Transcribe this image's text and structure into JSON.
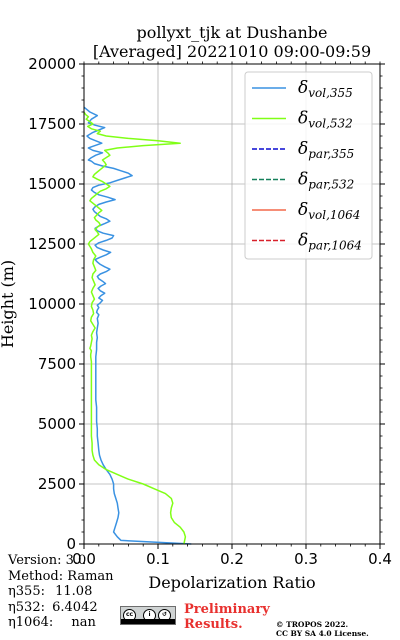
{
  "chart_data": {
    "type": "line",
    "title": "pollyxt_tjk at Dushanbe",
    "subtitle": "[Averaged] 20221010 09:00-09:59",
    "xlabel": "Depolarization Ratio",
    "ylabel": "Height (m)",
    "xlim": [
      0,
      0.4
    ],
    "ylim": [
      0,
      20000
    ],
    "xticks": [
      "0.0",
      "0.1",
      "0.2",
      "0.3",
      "0.4"
    ],
    "yticks": [
      "0",
      "2500",
      "5000",
      "7500",
      "10000",
      "12500",
      "15000",
      "17500",
      "20000"
    ],
    "grid": true,
    "legend_position": "top-right",
    "legend": [
      {
        "label": "δvol,355",
        "base": "δ",
        "sub": "vol,355",
        "color": "#3a92e2",
        "dash": false
      },
      {
        "label": "δvol,532",
        "base": "δ",
        "sub": "vol,532",
        "color": "#80ff16",
        "dash": false
      },
      {
        "label": "δpar,355",
        "base": "δ",
        "sub": "par,355",
        "color": "#0a0ad0",
        "dash": true
      },
      {
        "label": "δpar,532",
        "base": "δ",
        "sub": "par,532",
        "color": "#15805a",
        "dash": true
      },
      {
        "label": "δvol,1064",
        "base": "δ",
        "sub": "vol,1064",
        "color": "#f4684a",
        "dash": false
      },
      {
        "label": "δpar,1064",
        "base": "δ",
        "sub": "par,1064",
        "color": "#d8202a",
        "dash": true
      }
    ],
    "series": [
      {
        "name": "δvol,355",
        "color": "#3a92e2",
        "x": [
          0.145,
          0.05,
          0.045,
          0.04,
          0.042,
          0.044,
          0.046,
          0.047,
          0.046,
          0.045,
          0.043,
          0.041,
          0.04,
          0.04,
          0.038,
          0.035,
          0.03,
          0.026,
          0.023,
          0.021,
          0.02,
          0.019,
          0.018,
          0.018,
          0.017,
          0.017,
          0.017,
          0.016,
          0.016,
          0.016,
          0.016,
          0.016,
          0.016,
          0.016,
          0.017,
          0.017,
          0.018,
          0.017,
          0.018,
          0.019,
          0.018,
          0.02,
          0.017,
          0.018,
          0.02,
          0.018,
          0.022,
          0.025,
          0.02,
          0.023,
          0.028,
          0.022,
          0.019,
          0.023,
          0.029,
          0.025,
          0.02,
          0.018,
          0.022,
          0.03,
          0.035,
          0.028,
          0.022,
          0.018,
          0.015,
          0.022,
          0.03,
          0.036,
          0.026,
          0.018,
          0.015,
          0.02,
          0.03,
          0.038,
          0.04,
          0.026,
          0.018,
          0.015,
          0.02,
          0.028,
          0.035,
          0.03,
          0.022,
          0.018,
          0.014,
          0.012,
          0.015,
          0.02,
          0.03,
          0.042,
          0.032,
          0.02,
          0.014,
          0.01,
          0.012,
          0.02,
          0.035,
          0.045,
          0.055,
          0.065,
          0.06,
          0.05,
          0.04,
          0.025,
          0.014,
          0.01,
          0.006,
          0.01,
          0.016,
          0.025,
          0.012,
          0.006,
          0.01,
          0.024,
          0.016,
          0.008,
          0.004,
          0.012,
          0.02,
          0.028,
          0.015,
          0.006,
          0.01,
          0.018,
          0.008,
          0.0
        ],
        "y": [
          0,
          150,
          300,
          500,
          700,
          900,
          1100,
          1300,
          1500,
          1700,
          1900,
          2100,
          2300,
          2500,
          2700,
          2900,
          3100,
          3300,
          3500,
          3700,
          3900,
          4200,
          4500,
          4800,
          5100,
          5400,
          5700,
          6000,
          6300,
          6600,
          6900,
          7200,
          7500,
          7800,
          8100,
          8400,
          8600,
          8800,
          9000,
          9200,
          9400,
          9550,
          9650,
          9750,
          9850,
          9950,
          10050,
          10150,
          10250,
          10350,
          10450,
          10550,
          10650,
          10750,
          10850,
          10950,
          11050,
          11150,
          11250,
          11350,
          11450,
          11550,
          11650,
          11750,
          11850,
          11950,
          12050,
          12150,
          12250,
          12350,
          12450,
          12550,
          12650,
          12750,
          12850,
          12950,
          13050,
          13150,
          13250,
          13350,
          13450,
          13550,
          13650,
          13750,
          13850,
          13950,
          14050,
          14150,
          14250,
          14350,
          14450,
          14550,
          14650,
          14750,
          14850,
          14950,
          15050,
          15150,
          15250,
          15350,
          15450,
          15550,
          15650,
          15750,
          15850,
          15950,
          16000,
          16100,
          16200,
          16300,
          16400,
          16500,
          16550,
          16700,
          16800,
          16900,
          17000,
          17150,
          17250,
          17350,
          17450,
          17550,
          17700,
          17850,
          18000,
          18200
        ]
      },
      {
        "name": "δvol,532",
        "color": "#80ff16",
        "x": [
          0.135,
          0.137,
          0.135,
          0.13,
          0.122,
          0.118,
          0.117,
          0.118,
          0.12,
          0.118,
          0.11,
          0.095,
          0.08,
          0.06,
          0.045,
          0.03,
          0.02,
          0.014,
          0.012,
          0.011,
          0.011,
          0.01,
          0.01,
          0.01,
          0.01,
          0.01,
          0.01,
          0.01,
          0.01,
          0.01,
          0.01,
          0.01,
          0.01,
          0.009,
          0.009,
          0.01,
          0.008,
          0.009,
          0.01,
          0.011,
          0.01,
          0.012,
          0.015,
          0.012,
          0.009,
          0.01,
          0.013,
          0.012,
          0.01,
          0.011,
          0.014,
          0.012,
          0.01,
          0.012,
          0.015,
          0.013,
          0.011,
          0.012,
          0.016,
          0.014,
          0.012,
          0.013,
          0.016,
          0.012,
          0.01,
          0.008,
          0.006,
          0.008,
          0.012,
          0.016,
          0.02,
          0.018,
          0.015,
          0.018,
          0.022,
          0.02,
          0.016,
          0.014,
          0.017,
          0.02,
          0.024,
          0.02,
          0.016,
          0.012,
          0.008,
          0.01,
          0.014,
          0.018,
          0.022,
          0.03,
          0.035,
          0.03,
          0.025,
          0.018,
          0.012,
          0.014,
          0.018,
          0.022,
          0.026,
          0.03,
          0.028,
          0.025,
          0.03,
          0.035,
          0.032,
          0.028,
          0.045,
          0.08,
          0.13,
          0.1,
          0.06,
          0.03,
          0.018,
          0.022,
          0.01,
          0.005,
          0.012,
          0.008,
          0.003,
          0.006,
          0.002,
          0.0
        ],
        "y": [
          0,
          300,
          500,
          700,
          900,
          1100,
          1300,
          1500,
          1700,
          1900,
          2100,
          2300,
          2500,
          2700,
          2900,
          3100,
          3300,
          3500,
          3700,
          3900,
          4200,
          4500,
          4800,
          5100,
          5400,
          5700,
          6000,
          6300,
          6600,
          6900,
          7200,
          7400,
          7600,
          7800,
          7900,
          8050,
          8150,
          8250,
          8400,
          8550,
          8700,
          8850,
          9000,
          9150,
          9300,
          9450,
          9600,
          9750,
          9900,
          10050,
          10200,
          10350,
          10500,
          10650,
          10800,
          10950,
          11100,
          11250,
          11400,
          11550,
          11700,
          11850,
          12000,
          12150,
          12300,
          12400,
          12500,
          12600,
          12700,
          12800,
          12900,
          13000,
          13100,
          13200,
          13300,
          13400,
          13500,
          13600,
          13700,
          13800,
          13900,
          14000,
          14100,
          14200,
          14300,
          14400,
          14500,
          14600,
          14700,
          14800,
          14900,
          15000,
          15100,
          15200,
          15300,
          15400,
          15500,
          15600,
          15700,
          15800,
          15900,
          16000,
          16100,
          16200,
          16300,
          16400,
          16500,
          16600,
          16700,
          16800,
          16900,
          17000,
          17100,
          17200,
          17300,
          17400,
          17500,
          17600,
          17700,
          17800,
          17900,
          18000
        ]
      }
    ]
  },
  "info": {
    "version": "Version: 3.0",
    "method": "Method: Raman",
    "eta355_label": "η355:",
    "eta355_value": "11.08",
    "eta532_label": "η532:",
    "eta532_value": "6.4042",
    "eta1064_label": "η1064:",
    "eta1064_value": "nan"
  },
  "footer": {
    "license_badge_text": "BY SA",
    "preliminary_line1": "Preliminary",
    "preliminary_line2": "Results.",
    "tropos_line1": "© TROPOS 2022.",
    "tropos_line2": "CC BY SA 4.0 License."
  }
}
